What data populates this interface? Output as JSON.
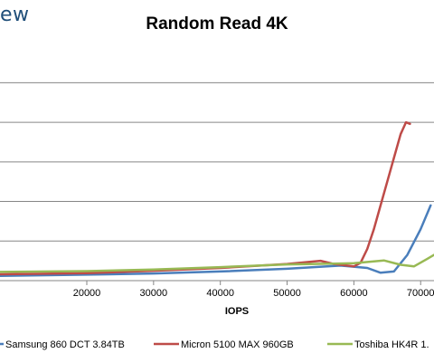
{
  "watermark": "ew",
  "chart_data": {
    "type": "line",
    "title": "Random Read 4K",
    "xlabel": "IOPS",
    "ylabel": "",
    "xlim": [
      7000,
      72000
    ],
    "ylim": [
      0,
      59
    ],
    "x_ticks": [
      20000,
      30000,
      40000,
      50000,
      60000,
      70000
    ],
    "x_tick_labels": [
      "20000",
      "30000",
      "40000",
      "50000",
      "60000",
      "70000"
    ],
    "y_ticks": [
      10,
      20,
      30,
      40,
      50
    ],
    "grid": "horizontal",
    "legend_position": "bottom",
    "series": [
      {
        "name": "Samsung 860 DCT 3.84TB",
        "color": "#4a7ebb",
        "points": [
          [
            7000,
            1.2
          ],
          [
            20000,
            1.5
          ],
          [
            30000,
            1.8
          ],
          [
            40000,
            2.3
          ],
          [
            50000,
            3.0
          ],
          [
            58000,
            3.8
          ],
          [
            62000,
            3.2
          ],
          [
            64000,
            2.0
          ],
          [
            66000,
            2.3
          ],
          [
            68000,
            6.5
          ],
          [
            70000,
            13.0
          ],
          [
            71500,
            19.0
          ]
        ]
      },
      {
        "name": "Micron 5100 MAX 960GB",
        "color": "#be4b48",
        "points": [
          [
            7000,
            1.6
          ],
          [
            20000,
            1.9
          ],
          [
            30000,
            2.5
          ],
          [
            40000,
            3.2
          ],
          [
            50000,
            4.2
          ],
          [
            55000,
            5.0
          ],
          [
            57000,
            4.2
          ],
          [
            60000,
            3.6
          ],
          [
            61000,
            4.5
          ],
          [
            62000,
            8.0
          ],
          [
            63000,
            13.0
          ],
          [
            64000,
            19.0
          ],
          [
            65000,
            25.0
          ],
          [
            66000,
            31.0
          ],
          [
            67000,
            37.0
          ],
          [
            67800,
            40.0
          ],
          [
            68400,
            39.6
          ]
        ]
      },
      {
        "name": "Toshiba HK4R 1.",
        "color": "#98b954",
        "points": [
          [
            7000,
            2.2
          ],
          [
            20000,
            2.4
          ],
          [
            30000,
            2.8
          ],
          [
            40000,
            3.4
          ],
          [
            50000,
            4.1
          ],
          [
            60000,
            4.4
          ],
          [
            64500,
            5.1
          ],
          [
            67000,
            4.0
          ],
          [
            69000,
            3.6
          ],
          [
            71000,
            5.5
          ],
          [
            72000,
            6.5
          ]
        ]
      }
    ]
  }
}
